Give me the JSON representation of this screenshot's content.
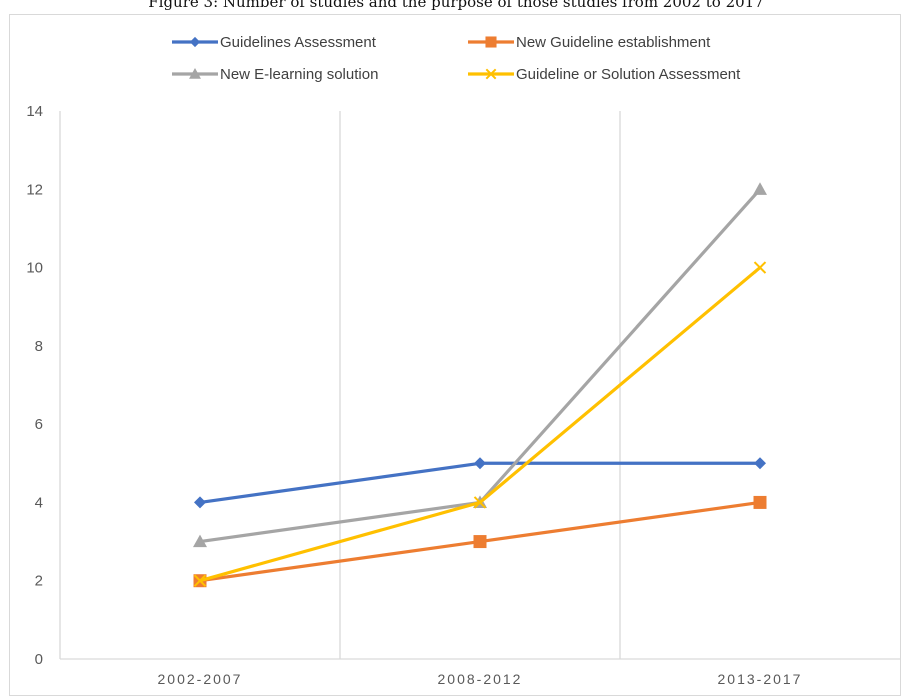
{
  "figure": {
    "caption": "Figure 3: Number of studies and the purpose of those studies from 2002 to 2017"
  },
  "chart_data": {
    "type": "line",
    "categories": [
      "2002-2007",
      "2008-2012",
      "2013-2017"
    ],
    "series": [
      {
        "name": "Guidelines Assessment",
        "values": [
          4,
          5,
          5
        ],
        "color": "#4472C4",
        "marker": "diamond"
      },
      {
        "name": "New Guideline establishment",
        "values": [
          2,
          3,
          4
        ],
        "color": "#ED7D31",
        "marker": "square"
      },
      {
        "name": "New E-learning solution",
        "values": [
          3,
          4,
          12
        ],
        "color": "#A5A5A5",
        "marker": "triangle"
      },
      {
        "name": "Guideline or Solution Assessment",
        "values": [
          2,
          4,
          10
        ],
        "color": "#FFC000",
        "marker": "x"
      }
    ],
    "y_ticks": [
      "0",
      "2",
      "4",
      "6",
      "8",
      "10",
      "12",
      "14"
    ],
    "ylim": [
      0,
      14
    ],
    "title": "",
    "xlabel": "",
    "ylabel": "",
    "grid": "vertical",
    "legend": "top"
  }
}
